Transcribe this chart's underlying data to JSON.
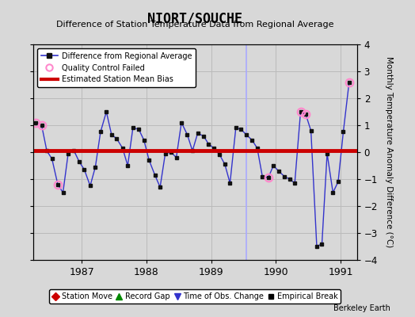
{
  "title": "NIORT/SOUCHE",
  "subtitle": "Difference of Station Temperature Data from Regional Average",
  "ylabel": "Monthly Temperature Anomaly Difference (°C)",
  "xlabel_ticks": [
    1987,
    1988,
    1989,
    1990,
    1991
  ],
  "ylim": [
    -4,
    4
  ],
  "xlim_start": 1986.25,
  "xlim_end": 1991.25,
  "bias_y": 0.05,
  "background_color": "#d8d8d8",
  "plot_bg_color": "#d8d8d8",
  "x_values": [
    1986.29,
    1986.38,
    1986.46,
    1986.54,
    1986.63,
    1986.71,
    1986.79,
    1986.88,
    1986.96,
    1987.04,
    1987.13,
    1987.21,
    1987.29,
    1987.38,
    1987.46,
    1987.54,
    1987.63,
    1987.71,
    1987.79,
    1987.88,
    1987.96,
    1988.04,
    1988.13,
    1988.21,
    1988.29,
    1988.38,
    1988.46,
    1988.54,
    1988.63,
    1988.71,
    1988.79,
    1988.88,
    1988.96,
    1989.04,
    1989.13,
    1989.21,
    1989.29,
    1989.38,
    1989.46,
    1989.54,
    1989.63,
    1989.71,
    1989.79,
    1989.88,
    1989.96,
    1990.04,
    1990.13,
    1990.21,
    1990.29,
    1990.38,
    1990.46,
    1990.54,
    1990.63,
    1990.71,
    1990.79,
    1990.88,
    1990.96,
    1991.04,
    1991.13
  ],
  "y_values": [
    1.1,
    1.0,
    0.05,
    -0.25,
    -1.2,
    -1.5,
    -0.05,
    0.05,
    -0.35,
    -0.65,
    -1.25,
    -0.55,
    0.75,
    1.5,
    0.65,
    0.5,
    0.15,
    -0.5,
    0.9,
    0.85,
    0.45,
    -0.3,
    -0.85,
    -1.3,
    -0.05,
    0.0,
    -0.2,
    1.1,
    0.65,
    0.05,
    0.7,
    0.6,
    0.3,
    0.15,
    -0.1,
    -0.45,
    -1.15,
    0.9,
    0.85,
    0.65,
    0.45,
    0.15,
    -0.9,
    -0.95,
    -0.5,
    -0.7,
    -0.9,
    -1.0,
    -1.15,
    1.5,
    1.4,
    0.8,
    -3.5,
    -3.4,
    -0.05,
    -1.5,
    -1.1,
    0.75,
    2.6
  ],
  "qc_failed_indices": [
    0,
    1,
    4,
    43,
    49,
    50,
    58
  ],
  "time_obs_change_x": [
    1989.54
  ],
  "line_color": "#3333cc",
  "marker_color": "#111111",
  "qc_color": "#ff88cc",
  "bias_color": "#cc0000",
  "grid_color": "#bbbbbb"
}
